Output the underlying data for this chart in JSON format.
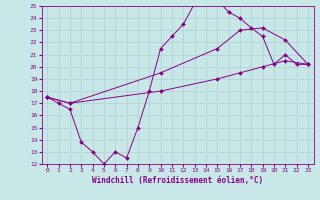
{
  "xlabel": "Windchill (Refroidissement éolien,°C)",
  "ylabel": "",
  "xlim": [
    -0.5,
    23.5
  ],
  "ylim": [
    12,
    25
  ],
  "xticks": [
    0,
    1,
    2,
    3,
    4,
    5,
    6,
    7,
    8,
    9,
    10,
    11,
    12,
    13,
    14,
    15,
    16,
    17,
    18,
    19,
    20,
    21,
    22,
    23
  ],
  "yticks": [
    12,
    13,
    14,
    15,
    16,
    17,
    18,
    19,
    20,
    21,
    22,
    23,
    24,
    25
  ],
  "bg_color": "#c8e8e8",
  "line_color": "#880088",
  "grid_color": "#b0d0d0",
  "line1_x": [
    0,
    1,
    2,
    3,
    4,
    5,
    6,
    7,
    8,
    9,
    10,
    11,
    12,
    13,
    14,
    15,
    16,
    17,
    18,
    19,
    20,
    21,
    22,
    23
  ],
  "line1_y": [
    17.5,
    17.0,
    16.5,
    13.8,
    13.0,
    12.0,
    13.0,
    12.5,
    15.0,
    18.0,
    21.5,
    22.5,
    23.5,
    25.2,
    25.5,
    25.5,
    24.5,
    24.0,
    23.2,
    22.5,
    20.2,
    21.0,
    20.2,
    20.2
  ],
  "line2_x": [
    0,
    2,
    10,
    15,
    17,
    19,
    21,
    23
  ],
  "line2_y": [
    17.5,
    17.0,
    19.5,
    21.5,
    23.0,
    23.2,
    22.2,
    20.2
  ],
  "line3_x": [
    0,
    2,
    10,
    15,
    17,
    19,
    21,
    23
  ],
  "line3_y": [
    17.5,
    17.0,
    18.0,
    19.0,
    19.5,
    20.0,
    20.5,
    20.2
  ]
}
